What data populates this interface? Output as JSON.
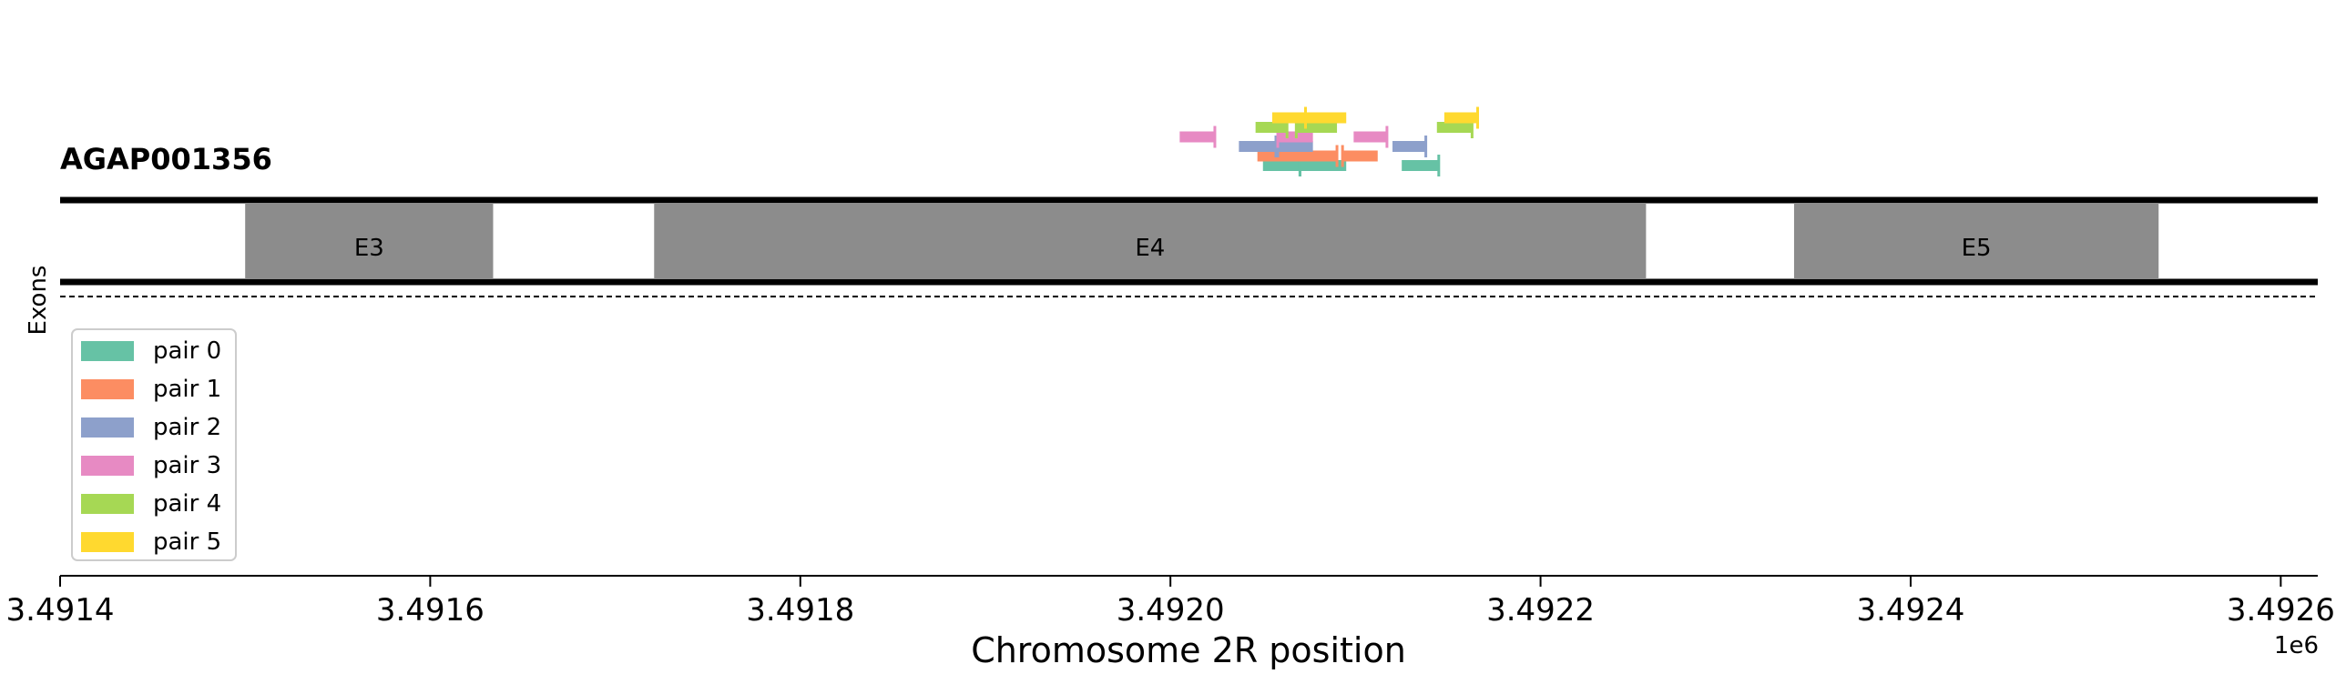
{
  "chart_data": {
    "type": "gene-track",
    "title": "AGAP001356",
    "xlabel": "Chromosome 2R position",
    "ylabel": "Exons",
    "x_offset_label": "1e6",
    "xlim": [
      3491400,
      3492620
    ],
    "x_ticks": [
      3491400,
      3491600,
      3491800,
      3492000,
      3492200,
      3492400,
      3492600
    ],
    "x_tick_labels": [
      "3.4914",
      "3.4916",
      "3.4918",
      "3.4920",
      "3.4922",
      "3.4924",
      "3.4926"
    ],
    "exons": [
      {
        "label": "E3",
        "start": 3491500,
        "end": 3491634
      },
      {
        "label": "E4",
        "start": 3491721,
        "end": 3492257
      },
      {
        "label": "E5",
        "start": 3492337,
        "end": 3492534
      }
    ],
    "primer_pairs": [
      {
        "name": "pair 0",
        "color": "#66c2a5",
        "forward": {
          "start": 3492050,
          "end": 3492070,
          "row": 1
        },
        "reverse": {
          "start": 3492070,
          "end": 3492095,
          "row": 1
        },
        "extra": {
          "start": 3492125,
          "end": 3492145,
          "row": 1
        }
      },
      {
        "name": "pair 1",
        "color": "#fc8d62",
        "forward": {
          "start": 3492047,
          "end": 3492090,
          "row": 2
        },
        "reverse": {
          "start": 3492093,
          "end": 3492112,
          "row": 2
        }
      },
      {
        "name": "pair 2",
        "color": "#8da0cb",
        "forward": {
          "start": 3492037,
          "end": 3492057,
          "row": 3
        },
        "reverse": {
          "start": 3492058,
          "end": 3492077,
          "row": 3
        },
        "extra": {
          "start": 3492120,
          "end": 3492138,
          "row": 3
        }
      },
      {
        "name": "pair 3",
        "color": "#e78ac3",
        "forward": {
          "start": 3492005,
          "end": 3492024,
          "row": 4
        },
        "reverse": {
          "start": 3492058,
          "end": 3492077,
          "row": 4
        },
        "extra": {
          "start": 3492099,
          "end": 3492117,
          "row": 4
        }
      },
      {
        "name": "pair 4",
        "color": "#a6d854",
        "forward": {
          "start": 3492046,
          "end": 3492063,
          "row": 5
        },
        "reverse": {
          "start": 3492068,
          "end": 3492090,
          "row": 5
        },
        "extra": {
          "start": 3492144,
          "end": 3492163,
          "row": 5
        }
      },
      {
        "name": "pair 5",
        "color": "#ffd92f",
        "forward": {
          "start": 3492055,
          "end": 3492073,
          "row": 6
        },
        "reverse": {
          "start": 3492073,
          "end": 3492095,
          "row": 6
        },
        "extra": {
          "start": 3492148,
          "end": 3492166,
          "row": 6
        }
      }
    ],
    "legend": {
      "placement": "lower-left",
      "entries": [
        "pair 0",
        "pair 1",
        "pair 2",
        "pair 3",
        "pair 4",
        "pair 5"
      ]
    }
  }
}
